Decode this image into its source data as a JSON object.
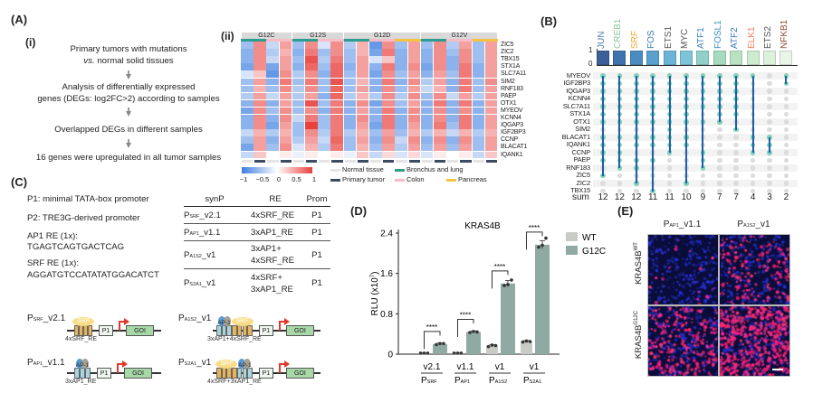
{
  "panel_labels": {
    "A": "(A)",
    "i": "(i)",
    "ii": "(ii)",
    "B": "(B)",
    "C": "(C)",
    "D": "(D)",
    "E": "(E)"
  },
  "workflow": {
    "step1_line1": "Primary tumors with mutations",
    "step1_vs": "vs.",
    "step1_line2": " normal solid tissues",
    "step2_line1": "Analysis of differentially expressed",
    "step2_line2": "genes (DEGs: log2FC>2)  according to samples",
    "step3": "Overlapped DEGs in different samples",
    "step4": "16 genes were upregulated in all tumor samples"
  },
  "heatmap": {
    "groups": [
      {
        "label": "G12C",
        "tissues": [
          "lung",
          "colon"
        ]
      },
      {
        "label": "G12S",
        "tissues": [
          "lung",
          "colon"
        ]
      },
      {
        "label": "G12D",
        "tissues": [
          "lung",
          "colon",
          "pancreas"
        ]
      },
      {
        "label": "G12V",
        "tissues": [
          "lung",
          "colon",
          "pancreas"
        ]
      }
    ],
    "sample_order": [
      "normal",
      "tumor"
    ],
    "colors": {
      "lung": "#2a9d8f",
      "colon": "#f8bcc8",
      "pancreas": "#f5c242",
      "normal": "#e4e4e4",
      "tumor": "#3d4a63",
      "low": "#3d7ee0",
      "mid": "#ffffff",
      "high": "#e8413c"
    },
    "genes": [
      "ZIC5",
      "ZIC2",
      "TBX15",
      "STX1A",
      "SLC7A11",
      "SIM2",
      "RNF183",
      "PAEP",
      "OTX1",
      "MYEOV",
      "KCNN4",
      "IQGAP3",
      "IGF2BP3",
      "CCNP",
      "BLACAT1",
      "IQANK1"
    ],
    "values": [
      [
        -0.5,
        0.6,
        -0.3,
        0.5,
        -0.5,
        0.6,
        -0.2,
        0.6,
        -0.4,
        0.4,
        -0.8,
        0.6,
        -0.5,
        0.5,
        -0.5,
        0.6,
        -0.4,
        0.5,
        -0.5,
        0.5
      ],
      [
        -0.6,
        0.6,
        -0.4,
        0.4,
        -0.6,
        0.7,
        -0.5,
        0.6,
        -0.5,
        0.4,
        -0.7,
        0.7,
        -0.6,
        0.5,
        -0.6,
        0.6,
        -0.5,
        0.6,
        -0.5,
        0.5
      ],
      [
        -0.6,
        0.6,
        -0.3,
        0.5,
        -0.5,
        0.9,
        -0.4,
        0.7,
        -0.5,
        0.5,
        -0.2,
        0.3,
        -0.6,
        0.5,
        -0.6,
        0.6,
        -0.6,
        0.6,
        -0.5,
        0.5
      ],
      [
        -0.7,
        0.6,
        -0.7,
        0.5,
        -0.6,
        0.8,
        -0.5,
        0.8,
        -0.6,
        0.5,
        -0.6,
        0.7,
        -0.6,
        0.6,
        -0.7,
        0.6,
        -0.6,
        0.7,
        -0.6,
        0.5
      ],
      [
        -0.2,
        0.3,
        -0.8,
        0.6,
        -0.4,
        0.6,
        -0.6,
        0.8,
        -0.5,
        0.5,
        -0.7,
        0.6,
        -0.5,
        0.5,
        -0.6,
        0.5,
        -0.5,
        0.7,
        -0.6,
        0.5
      ],
      [
        -0.5,
        0.5,
        -0.6,
        0.7,
        -0.5,
        0.7,
        -0.5,
        0.9,
        -0.5,
        0.4,
        -0.6,
        0.7,
        -0.6,
        0.6,
        -0.4,
        0.5,
        -0.6,
        0.7,
        -0.5,
        0.6
      ],
      [
        -0.5,
        0.4,
        -0.5,
        0.6,
        -0.4,
        0.6,
        -0.5,
        0.8,
        -0.5,
        0.5,
        -0.6,
        0.6,
        -0.5,
        0.5,
        -0.3,
        0.4,
        -0.6,
        0.7,
        -0.5,
        0.5
      ],
      [
        -0.4,
        0.5,
        -0.3,
        0.5,
        -0.4,
        0.5,
        -0.6,
        0.8,
        -0.4,
        0.4,
        -0.4,
        0.6,
        -0.4,
        0.6,
        -0.5,
        0.6,
        -0.3,
        0.5,
        -0.4,
        0.5
      ],
      [
        -0.6,
        0.6,
        -0.6,
        0.5,
        -0.5,
        0.9,
        -0.5,
        0.7,
        -0.6,
        0.6,
        -0.7,
        0.6,
        -0.5,
        0.5,
        -0.6,
        0.7,
        -0.6,
        0.7,
        -0.6,
        0.5
      ],
      [
        -0.7,
        0.6,
        -0.5,
        0.6,
        -0.5,
        0.6,
        -0.6,
        0.7,
        -0.6,
        0.5,
        -0.6,
        0.7,
        -0.6,
        0.6,
        -0.6,
        0.6,
        -0.6,
        0.6,
        -0.6,
        0.5
      ],
      [
        -0.6,
        0.6,
        -0.6,
        0.6,
        -0.3,
        0.7,
        -0.5,
        0.7,
        -0.6,
        0.6,
        -0.6,
        0.7,
        -0.6,
        0.6,
        -0.6,
        0.6,
        -0.6,
        0.7,
        -0.6,
        0.5
      ],
      [
        -0.6,
        0.6,
        -0.7,
        0.5,
        -0.5,
        1.0,
        -0.5,
        0.7,
        -0.6,
        0.5,
        -0.7,
        0.7,
        -0.6,
        0.5,
        -0.6,
        0.7,
        -0.5,
        0.7,
        -0.6,
        0.5
      ],
      [
        -0.3,
        0.4,
        -0.4,
        0.4,
        -0.5,
        0.6,
        -0.4,
        0.7,
        -0.4,
        0.4,
        -0.5,
        0.5,
        -0.5,
        0.4,
        -0.4,
        0.4,
        -0.3,
        0.4,
        -0.4,
        0.4
      ],
      [
        -0.5,
        0.5,
        -0.6,
        0.5,
        -0.4,
        0.5,
        -0.3,
        0.8,
        -0.5,
        0.5,
        -0.6,
        0.6,
        -0.3,
        0.6,
        -0.6,
        0.6,
        -0.6,
        0.6,
        -0.5,
        0.5
      ],
      [
        -0.7,
        0.5,
        -0.5,
        0.6,
        -0.2,
        0.4,
        -0.4,
        0.7,
        -0.5,
        0.4,
        -0.5,
        0.5,
        -0.4,
        0.5,
        -0.5,
        0.5,
        -0.5,
        0.5,
        -0.5,
        0.5
      ],
      [
        -0.3,
        0.3,
        0.0,
        0.1,
        -0.1,
        0.1,
        0.0,
        0.1,
        -0.1,
        0.3,
        -0.3,
        0.2,
        -0.2,
        0.2,
        -0.2,
        0.1,
        0.0,
        0.1,
        -0.3,
        0.3
      ]
    ],
    "legend": {
      "ticks": [
        "−1",
        "−0.5",
        "0",
        "0.5",
        "1"
      ],
      "normal": "Normal tissue",
      "tumor": "Primary tumor",
      "lung": "Bronchus and lung",
      "colon": "Colon",
      "pancreas": "Pancreas"
    }
  },
  "upset": {
    "tfs": [
      {
        "name": "JUN",
        "color": "#4a78b0",
        "bar": "#3b5f96",
        "members": [
          0,
          1,
          2,
          3,
          4,
          5,
          6,
          8,
          9,
          10,
          11,
          13
        ]
      },
      {
        "name": "CREB1",
        "color": "#8fc79a",
        "bar": "#3f73ad",
        "members": [
          0,
          1,
          2,
          3,
          4,
          5,
          6,
          8,
          9,
          10,
          11,
          12
        ]
      },
      {
        "name": "SRF",
        "color": "#f0a830",
        "bar": "#4a8bc2",
        "members": [
          0,
          1,
          2,
          3,
          4,
          5,
          6,
          8,
          9,
          11,
          12,
          14
        ]
      },
      {
        "name": "FOS",
        "color": "#3a7ab8",
        "bar": "#5aa0cc",
        "members": [
          0,
          1,
          2,
          3,
          4,
          5,
          6,
          8,
          9,
          11,
          15
        ]
      },
      {
        "name": "ETS1",
        "color": "#555555",
        "bar": "#6cb4d6",
        "members": [
          0,
          1,
          2,
          3,
          4,
          5,
          6,
          7,
          8,
          9,
          10
        ]
      },
      {
        "name": "MYC",
        "color": "#555555",
        "bar": "#7ec4d8",
        "members": [
          0,
          1,
          2,
          3,
          4,
          5,
          6,
          8,
          9,
          14
        ]
      },
      {
        "name": "ATF1",
        "color": "#3d7fbf",
        "bar": "#8fd0c8",
        "members": [
          0,
          1,
          2,
          3,
          4,
          6,
          10,
          11,
          12
        ]
      },
      {
        "name": "FOSL1",
        "color": "#3a8fc0",
        "bar": "#a5dbbf",
        "members": [
          0,
          1,
          2,
          3,
          4,
          5,
          6
        ]
      },
      {
        "name": "ATF2",
        "color": "#3a7ab8",
        "bar": "#b9e3c0",
        "members": [
          0,
          1,
          2,
          3,
          4,
          5,
          7
        ]
      },
      {
        "name": "ELK1",
        "color": "#f07a5a",
        "bar": "#cdebcf",
        "members": [
          0,
          8,
          9,
          10
        ]
      },
      {
        "name": "ETS2",
        "color": "#555555",
        "bar": "#dcf0dc",
        "members": [
          8,
          9,
          10
        ]
      },
      {
        "name": "NFKB1",
        "color": "#8a4a30",
        "bar": "#e9f5e6",
        "members": [
          0,
          1
        ]
      }
    ],
    "genes": [
      "MYEOV",
      "IGF2BP3",
      "IQGAP3",
      "KCNN4",
      "SLC7A11",
      "STX1A",
      "OTX1",
      "SIM2",
      "BLACAT1",
      "IQANK1",
      "CCNP",
      "PAEP",
      "RNF183",
      "ZIC5",
      "ZIC2",
      "TBX15"
    ],
    "sums": [
      "12",
      "12",
      "12",
      "11",
      "11",
      "10",
      "9",
      "7",
      "7",
      "4",
      "3",
      "2"
    ],
    "sum_label": "sum",
    "axis_ticks": [
      "1",
      "0"
    ]
  },
  "panel_c": {
    "defs": [
      "P1: minimal TATA-box promoter",
      "P2: TRE3G-derived promoter",
      "AP1 RE (1x):",
      "TGAGTCAGTGACTCAG",
      "SRF RE (1x):",
      "AGGATGTCCATATATGGACATCT"
    ],
    "table": {
      "headers": [
        "synP",
        "RE",
        "Prom"
      ],
      "rows": [
        {
          "p": "P",
          "sub": "SRF",
          "suf": "_v2.1",
          "re1": "4xSRF_RE",
          "re2": "",
          "prom": "P1"
        },
        {
          "p": "P",
          "sub": "AP1",
          "suf": "_v1.1",
          "re1": "3xAP1_RE",
          "re2": "",
          "prom": "P1"
        },
        {
          "p": "P",
          "sub": "A1S2",
          "suf": "_v1",
          "re1": "3xAP1+",
          "re2": "4xSRF_RE",
          "prom": "P1"
        },
        {
          "p": "P",
          "sub": "S2A1",
          "suf": "_v1",
          "re1": "4xSRF+",
          "re2": "3xAP1_RE",
          "prom": "P1"
        }
      ]
    },
    "constructs": [
      {
        "p": "P",
        "sub": "SRF",
        "suf": "_v2.1",
        "elements": [
          "SRF",
          "SRF",
          "SRF",
          "SRF"
        ],
        "caption": "4xSRF_RE"
      },
      {
        "p": "P",
        "sub": "A1S2",
        "suf": "_v1",
        "elements": [
          "AP1",
          "AP1",
          "AP1",
          "SRF",
          "SRF",
          "SRF",
          "SRF"
        ],
        "caption": "3xAP1+4xSRF_RE"
      },
      {
        "p": "P",
        "sub": "AP1",
        "suf": "_v1.1",
        "elements": [
          "AP1",
          "AP1",
          "AP1"
        ],
        "caption": "3xAP1_RE"
      },
      {
        "p": "P",
        "sub": "S2A1",
        "suf": "_v1",
        "elements": [
          "SRF",
          "SRF",
          "SRF",
          "SRF",
          "AP1",
          "AP1",
          "AP1"
        ],
        "caption": "4xSRF+3xAP1_RE"
      }
    ],
    "promoter_label": "P1",
    "gene_label": "GOI",
    "srf_protein": "SRF",
    "ap1_protein": "AP-1"
  },
  "chart_data": {
    "type": "bar",
    "title": "KRAS4B",
    "ylabel": "RLU (x10",
    "ylabel_exp": "7",
    "ylabel_end": ")",
    "ylim": [
      0,
      2.4
    ],
    "yticks": [
      "0",
      "0.8",
      "1.6",
      "2.4"
    ],
    "categories": [
      {
        "version": "v2.1",
        "p": "P",
        "sub": "SRF"
      },
      {
        "version": "v1.1",
        "p": "P",
        "sub": "AP1"
      },
      {
        "version": "v1",
        "p": "P",
        "sub": "A1S2"
      },
      {
        "version": "v1",
        "p": "P",
        "sub": "S2A1"
      }
    ],
    "series": [
      {
        "name": "WT",
        "color": "#c8cbc6",
        "values": [
          0.02,
          0.02,
          0.17,
          0.25
        ],
        "err": [
          0.01,
          0.01,
          0.02,
          0.02
        ],
        "points": [
          [
            0.02,
            0.02,
            0.02
          ],
          [
            0.02,
            0.02,
            0.02
          ],
          [
            0.15,
            0.18,
            0.17
          ],
          [
            0.24,
            0.26,
            0.25
          ]
        ]
      },
      {
        "name": "G12C",
        "color": "#8fa9a3",
        "values": [
          0.2,
          0.44,
          1.4,
          2.17
        ],
        "err": [
          0.02,
          0.02,
          0.06,
          0.08
        ],
        "points": [
          [
            0.19,
            0.21,
            0.21
          ],
          [
            0.43,
            0.45,
            0.44
          ],
          [
            1.36,
            1.38,
            1.47
          ],
          [
            2.12,
            2.16,
            2.3
          ]
        ]
      }
    ],
    "significance": [
      "****",
      "****",
      "****",
      "****"
    ]
  },
  "panel_e": {
    "columns": [
      {
        "p": "P",
        "sub": "AP1",
        "suf": "_v1.1"
      },
      {
        "p": "P",
        "sub": "A1S2",
        "suf": "_v1"
      }
    ],
    "rows": [
      {
        "label": "KRAS4B",
        "sup": "WT"
      },
      {
        "label": "KRAS4B",
        "sup": "G12C"
      }
    ],
    "red_signal": [
      [
        0.03,
        0.3
      ],
      [
        0.45,
        0.95
      ]
    ]
  }
}
